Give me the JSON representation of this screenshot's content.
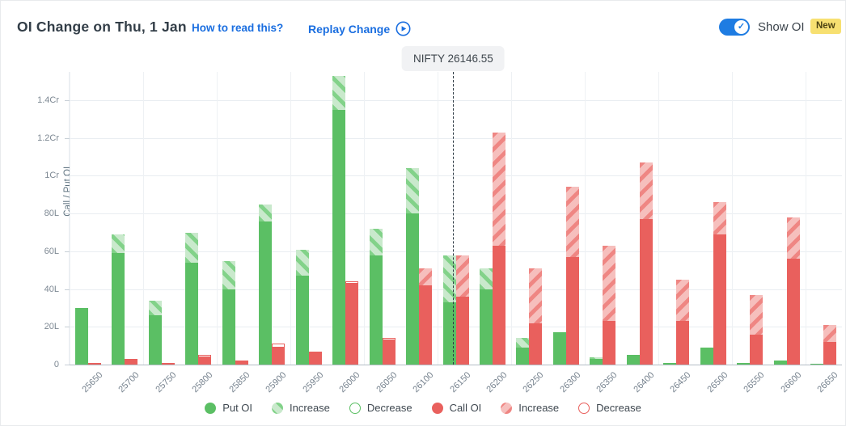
{
  "header": {
    "title": "OI Change on Thu, 1 Jan",
    "how_to_read_link": "How to read this?",
    "replay_change_label": "Replay Change",
    "show_oi_label": "Show OI",
    "new_badge": "New",
    "show_oi_toggle_state": "on",
    "check_glyph": "✓"
  },
  "colors": {
    "accent_blue": "#1a6ee0",
    "toggle_blue": "#1e7ce2",
    "badge_yellow": "#f7e071",
    "put_solid": "#5bbf64",
    "put_hatch_bg": "#c9e9cc",
    "put_hatch_stripe": "#82d289",
    "call_solid": "#e9605d",
    "call_hatch_bg": "#f6bfbd",
    "call_hatch_stripe": "#ef8683",
    "grid": "#e9edf1",
    "nifty_line": "#2f3b45"
  },
  "nifty_marker": {
    "label": "NIFTY 26146.55",
    "value": 26146.55
  },
  "chart_data": {
    "type": "bar",
    "title": "OI Change on Thu, 1 Jan",
    "ylabel": "Call / Put OI",
    "unit": "lakh",
    "ylim": [
      0,
      155
    ],
    "grid": true,
    "yticks": [
      {
        "value": 0,
        "label": "0"
      },
      {
        "value": 20,
        "label": "20L"
      },
      {
        "value": 40,
        "label": "40L"
      },
      {
        "value": 60,
        "label": "60L"
      },
      {
        "value": 80,
        "label": "80L"
      },
      {
        "value": 100,
        "label": "1Cr"
      },
      {
        "value": 120,
        "label": "1.2Cr"
      },
      {
        "value": 140,
        "label": "1.4Cr"
      }
    ],
    "categories": [
      "25650",
      "25700",
      "25750",
      "25800",
      "25850",
      "25900",
      "25950",
      "26000",
      "26050",
      "26100",
      "26150",
      "26200",
      "26250",
      "26300",
      "26350",
      "26400",
      "26450",
      "26500",
      "26550",
      "26600",
      "26650"
    ],
    "series": [
      {
        "name": "Put OI",
        "role": "put",
        "totals": [
          30,
          69,
          34,
          70,
          55,
          85,
          61,
          153,
          72,
          104,
          58,
          51,
          14,
          17,
          4,
          5,
          1,
          9,
          1,
          2,
          0.5
        ],
        "changes": [
          0,
          10,
          8,
          16,
          15,
          9,
          14,
          18,
          14,
          24,
          25,
          11,
          5,
          0,
          1,
          0,
          0,
          0,
          0,
          0,
          0
        ],
        "change_types": [
          "none",
          "inc",
          "inc",
          "inc",
          "inc",
          "inc",
          "inc",
          "inc",
          "inc",
          "inc",
          "inc",
          "inc",
          "inc",
          "none",
          "inc",
          "none",
          "none",
          "none",
          "none",
          "none",
          "none"
        ]
      },
      {
        "name": "Call OI",
        "role": "call",
        "totals": [
          1,
          3,
          1,
          5,
          2,
          11,
          7,
          44,
          14,
          51,
          58,
          123,
          51,
          94,
          63,
          107,
          45,
          86,
          37,
          78,
          21
        ],
        "changes": [
          0,
          0,
          0,
          1,
          0,
          2,
          0,
          1,
          1,
          9,
          22,
          60,
          29,
          37,
          40,
          30,
          22,
          17,
          21,
          22,
          9
        ],
        "change_types": [
          "none",
          "none",
          "none",
          "dec",
          "none",
          "dec",
          "none",
          "dec",
          "dec",
          "inc",
          "inc",
          "inc",
          "inc",
          "inc",
          "inc",
          "inc",
          "inc",
          "inc",
          "inc",
          "inc",
          "inc"
        ]
      }
    ],
    "legend": [
      {
        "label": "Put OI",
        "style": "solid",
        "series": "put"
      },
      {
        "label": "Increase",
        "style": "hatch",
        "series": "put"
      },
      {
        "label": "Decrease",
        "style": "hollow",
        "series": "put"
      },
      {
        "label": "Call OI",
        "style": "solid",
        "series": "call"
      },
      {
        "label": "Increase",
        "style": "hatch",
        "series": "call"
      },
      {
        "label": "Decrease",
        "style": "hollow",
        "series": "call"
      }
    ],
    "legend_position": "bottom"
  }
}
